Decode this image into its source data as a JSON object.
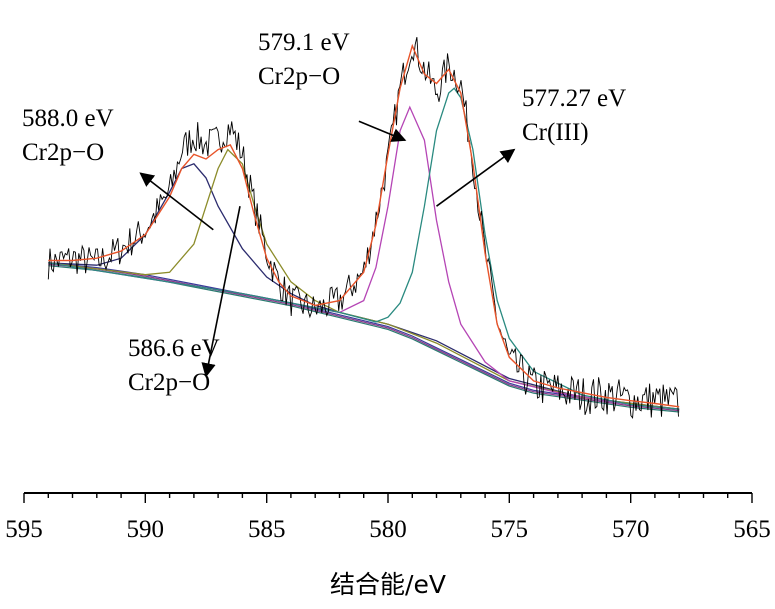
{
  "chart_data": {
    "type": "line",
    "title": "",
    "xlabel": "结合能/eV",
    "ylabel": "",
    "xlim": [
      595,
      565
    ],
    "x_reversed": true,
    "ylim": [
      0,
      100
    ],
    "grid": false,
    "legend": "none",
    "x_ticks": [
      595,
      590,
      585,
      580,
      575,
      570,
      565
    ],
    "x_tick_labels": [
      "595",
      "590",
      "585",
      "580",
      "575",
      "570",
      "565"
    ],
    "baseline": {
      "x": [
        594,
        592,
        590,
        588,
        586,
        584,
        582,
        580,
        579,
        578,
        577,
        576,
        575,
        574,
        572,
        570,
        568
      ],
      "y": [
        46,
        45,
        43.5,
        41.5,
        39.5,
        37.5,
        35,
        32.5,
        30.5,
        28,
        25.5,
        23,
        20.5,
        19,
        17.5,
        16,
        15
      ]
    },
    "series": [
      {
        "name": "",
        "role": "raw",
        "color": "#000000",
        "x": [
          594,
          593,
          592,
          591,
          590,
          589,
          588.5,
          588,
          587.5,
          587,
          586.5,
          586,
          585.5,
          585,
          584.5,
          584,
          583,
          582,
          581,
          580.5,
          580,
          579.5,
          579,
          578.5,
          578,
          577.5,
          577,
          576.5,
          576,
          575.5,
          575,
          574,
          573,
          572,
          571,
          570,
          569,
          568
        ],
        "y": [
          46,
          47,
          46,
          49,
          53,
          61,
          70,
          73,
          71,
          72,
          75,
          69,
          58,
          48,
          42,
          38,
          36,
          38,
          44,
          55,
          68,
          83,
          93,
          87,
          82,
          88,
          84,
          68,
          48,
          34,
          25,
          20,
          19,
          18,
          18,
          17,
          17,
          16
        ]
      },
      {
        "name": "",
        "role": "envelope",
        "color": "#e8542a",
        "x": [
          594,
          593,
          592,
          591,
          590,
          589,
          588.5,
          588,
          587.5,
          587,
          586.5,
          586,
          585.5,
          585,
          584.5,
          584,
          583,
          582,
          581,
          580.5,
          580,
          579.5,
          579,
          578.5,
          578,
          577.5,
          577,
          576.5,
          576,
          575.5,
          575,
          574,
          573,
          572,
          571,
          570,
          569,
          568
        ],
        "y": [
          46.5,
          46.5,
          47,
          48.5,
          52,
          60,
          66,
          69,
          68,
          70,
          71,
          66,
          56,
          47,
          42,
          39,
          37,
          38,
          44,
          54,
          69,
          83,
          92,
          86,
          84,
          87,
          82,
          67,
          48,
          33,
          26,
          21,
          19.5,
          18.5,
          17.5,
          16.8,
          16.2,
          15.5
        ]
      },
      {
        "name": "",
        "role": "peak",
        "center": 588.0,
        "label": "588.0 eV Cr2p−O",
        "color": "#2c2c6e",
        "x": [
          594,
          592,
          591,
          590,
          589,
          588.5,
          588,
          587.5,
          587,
          586,
          585,
          584,
          583,
          582,
          580,
          578,
          575,
          572,
          568
        ],
        "y": [
          46,
          45.5,
          47,
          52,
          61,
          66,
          67,
          64,
          58,
          49,
          43,
          39.5,
          37,
          35.5,
          33,
          29.5,
          21.5,
          17.5,
          15
        ]
      },
      {
        "name": "",
        "role": "peak",
        "center": 586.6,
        "label": "586.6 eV Cr2p−O",
        "color": "#8c8c2a",
        "x": [
          594,
          590,
          589,
          588,
          587.5,
          587,
          586.6,
          586,
          585.5,
          585,
          584,
          583,
          582,
          580,
          578,
          575,
          572,
          568
        ],
        "y": [
          46,
          43.5,
          44,
          50,
          58,
          66,
          70,
          67,
          58,
          50,
          42,
          38,
          35.5,
          33,
          29,
          21,
          17.5,
          15
        ]
      },
      {
        "name": "",
        "role": "peak",
        "center": 579.1,
        "label": "579.1 eV Cr2p−O",
        "color": "#b545b5",
        "x": [
          594,
          586,
          582,
          581,
          580.5,
          580,
          579.5,
          579.1,
          578.5,
          578,
          577.5,
          577,
          576,
          575,
          573,
          570,
          568
        ],
        "y": [
          46,
          39.5,
          35.5,
          38,
          45,
          58,
          74,
          79,
          72,
          55,
          42,
          33,
          25,
          21,
          18.5,
          16,
          15
        ]
      },
      {
        "name": "",
        "role": "peak",
        "center": 577.27,
        "label": "577.27 eV Cr(III)",
        "color": "#2a8a80",
        "x": [
          594,
          586,
          582,
          580.5,
          580,
          579.5,
          579,
          578.5,
          578,
          577.5,
          577.27,
          577,
          576.5,
          576,
          575.5,
          575,
          574,
          572,
          570,
          568
        ],
        "y": [
          46,
          39.5,
          35.5,
          33.5,
          34.5,
          37.5,
          44,
          58,
          74,
          82,
          83,
          81,
          70,
          52,
          38,
          30,
          23,
          18,
          16,
          15
        ]
      }
    ],
    "annotations": [
      {
        "lines": [
          "579.1 eV",
          "Cr2p−O"
        ],
        "arrow_from": [
          581.2,
          76
        ],
        "arrow_to": [
          579.3,
          72
        ]
      },
      {
        "lines": [
          "577.27 eV",
          "Cr(III)"
        ],
        "arrow_from": [
          578,
          58
        ],
        "arrow_to": [
          574.8,
          70
        ]
      },
      {
        "lines": [
          "588.0 eV",
          "Cr2p−O"
        ],
        "arrow_from": [
          587.2,
          53
        ],
        "arrow_to": [
          590.2,
          65
        ]
      },
      {
        "lines": [
          "586.6 eV",
          "Cr2p−O"
        ],
        "arrow_from": [
          586.1,
          58
        ],
        "arrow_to": [
          587.5,
          22
        ]
      }
    ]
  }
}
